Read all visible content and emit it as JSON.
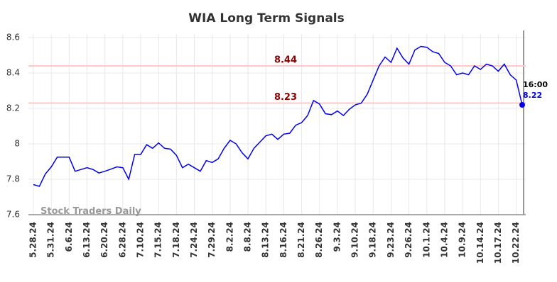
{
  "chart_data": {
    "type": "line",
    "title": "WIA Long Term Signals",
    "categories": [
      "5.28.24",
      null,
      null,
      "5.31.24",
      null,
      null,
      "6.6.24",
      null,
      null,
      "6.13.24",
      null,
      null,
      "6.20.24",
      null,
      null,
      "6.28.24",
      null,
      null,
      "7.10.24",
      null,
      null,
      "7.15.24",
      null,
      null,
      "7.18.24",
      null,
      null,
      "7.24.24",
      null,
      null,
      "7.29.24",
      null,
      null,
      "8.2.24",
      null,
      null,
      "8.8.24",
      null,
      null,
      "8.13.24",
      null,
      null,
      "8.16.24",
      null,
      null,
      "8.21.24",
      null,
      null,
      "8.26.24",
      null,
      null,
      "9.3.24",
      null,
      null,
      "9.10.24",
      null,
      null,
      "9.18.24",
      null,
      null,
      "9.23.24",
      null,
      null,
      "9.26.24",
      null,
      null,
      "10.1.24",
      null,
      null,
      "10.4.24",
      null,
      null,
      "10.9.24",
      null,
      null,
      "10.14.24",
      null,
      null,
      "10.17.24",
      null,
      null,
      "10.22.24",
      null
    ],
    "values": [
      7.77,
      7.76,
      7.83,
      7.87,
      7.925,
      7.925,
      7.925,
      7.845,
      7.855,
      7.865,
      7.855,
      7.835,
      7.845,
      7.857,
      7.87,
      7.865,
      7.8,
      7.94,
      7.94,
      7.995,
      7.975,
      8.005,
      7.975,
      7.97,
      7.935,
      7.865,
      7.885,
      7.865,
      7.845,
      7.905,
      7.895,
      7.915,
      7.975,
      8.02,
      8.0,
      7.95,
      7.915,
      7.975,
      8.01,
      8.045,
      8.055,
      8.025,
      8.055,
      8.06,
      8.105,
      8.12,
      8.16,
      8.245,
      8.225,
      8.17,
      8.165,
      8.185,
      8.16,
      8.195,
      8.22,
      8.23,
      8.28,
      8.36,
      8.44,
      8.49,
      8.46,
      8.54,
      8.485,
      8.45,
      8.53,
      8.55,
      8.545,
      8.52,
      8.51,
      8.46,
      8.44,
      8.39,
      8.4,
      8.39,
      8.44,
      8.42,
      8.45,
      8.44,
      8.41,
      8.45,
      8.39,
      8.36,
      8.22
    ],
    "color": "#0000ee",
    "ylim": [
      7.6,
      8.6
    ],
    "yticks": [
      7.6,
      7.8,
      8,
      8.2,
      8.4,
      8.6
    ],
    "grid": true,
    "hlines": [
      {
        "value": 8.44,
        "color": "#ffc8c8",
        "label_color": "#8b0000"
      },
      {
        "value": 8.23,
        "color": "#ffc8c8",
        "label_color": "#8b0000"
      }
    ],
    "last_time": "16:00",
    "watermark": "Stock Traders Daily"
  }
}
